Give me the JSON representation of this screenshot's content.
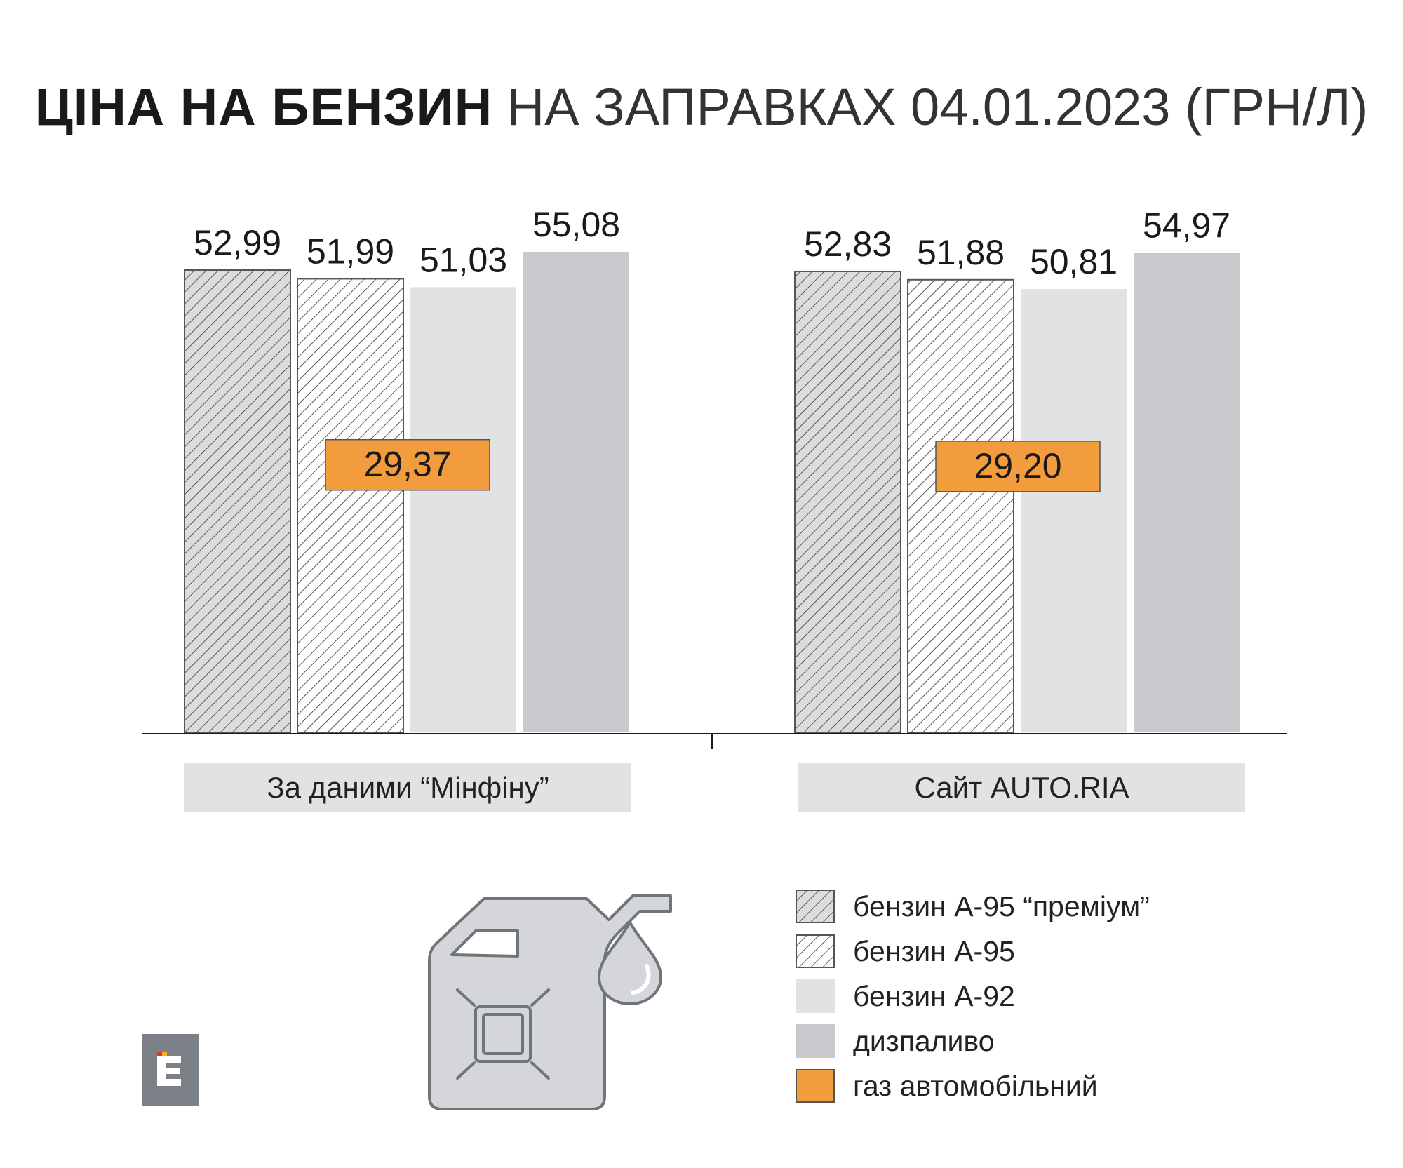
{
  "title": {
    "bold": "ЦІНА НА БЕНЗИН",
    "light": "НА ЗАПРАВКАХ 04.01.2023 (ГРН/Л)"
  },
  "chart_data": {
    "type": "bar",
    "title": "ЦІНА НА БЕНЗИН НА ЗАПРАВКАХ 04.01.2023 (ГРН/Л)",
    "categories": [
      "За даними “Мінфіну”",
      "Сайт AUTO.RIA"
    ],
    "ylim": [
      0,
      55.08
    ],
    "grid": false,
    "legend_position": "bottom-right",
    "series": [
      {
        "name": "бензин А-95 “преміум”",
        "values": [
          52.99,
          52.83
        ],
        "labels": [
          "52,99",
          "52,83"
        ],
        "fill": "hatch-dense",
        "color": "#dcdcdc"
      },
      {
        "name": "бензин А-95",
        "values": [
          51.99,
          51.88
        ],
        "labels": [
          "51,99",
          "51,88"
        ],
        "fill": "hatch",
        "color": "#ffffff"
      },
      {
        "name": "бензин А-92",
        "values": [
          51.03,
          50.81
        ],
        "labels": [
          "51,03",
          "50,81"
        ],
        "fill": "solid",
        "color": "#e1e2e4"
      },
      {
        "name": "дизпаливо",
        "values": [
          55.08,
          54.97
        ],
        "labels": [
          "55,08",
          "54,97"
        ],
        "fill": "solid",
        "color": "#c8cacd"
      },
      {
        "name": "газ автомобільний",
        "values": [
          29.37,
          29.2
        ],
        "labels": [
          "29,37",
          "29,20"
        ],
        "fill": "solid",
        "color": "#f39c3d"
      }
    ]
  },
  "colors": {
    "gas_orange": "#f39c3d",
    "light_gray": "#e1e2e4",
    "mid_gray": "#c8cacd",
    "hatch_line": "#555555",
    "logo_gray": "#7b8187",
    "logo_accent_red": "#e0362c",
    "logo_accent_yellow": "#f3b51b"
  },
  "icons": {
    "logo": "e-letter-logo-icon",
    "canister": "fuel-canister-icon",
    "drop": "fuel-drop-icon"
  }
}
